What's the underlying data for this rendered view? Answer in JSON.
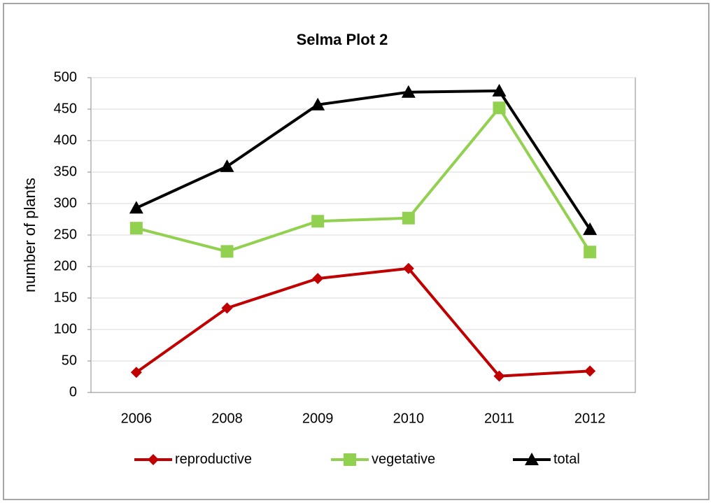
{
  "chart_data": {
    "type": "line",
    "title": "Selma Plot 2",
    "y_label": "number of plants",
    "categories": [
      "2006",
      "2008",
      "2009",
      "2010",
      "2011",
      "2012"
    ],
    "series": [
      {
        "name": "reproductive",
        "color": "#c00000",
        "marker": "diamond",
        "values": [
          32,
          134,
          181,
          197,
          26,
          34
        ]
      },
      {
        "name": "vegetative",
        "color": "#92d050",
        "marker": "square",
        "values": [
          261,
          224,
          272,
          277,
          452,
          223
        ]
      },
      {
        "name": "total",
        "color": "#000000",
        "marker": "triangle",
        "values": [
          293,
          359,
          457,
          477,
          479,
          259
        ]
      }
    ],
    "ylim": [
      0,
      500
    ],
    "yticks": [
      0,
      50,
      100,
      150,
      200,
      250,
      300,
      350,
      400,
      450,
      500
    ],
    "grid": true,
    "legend": "bottom"
  }
}
